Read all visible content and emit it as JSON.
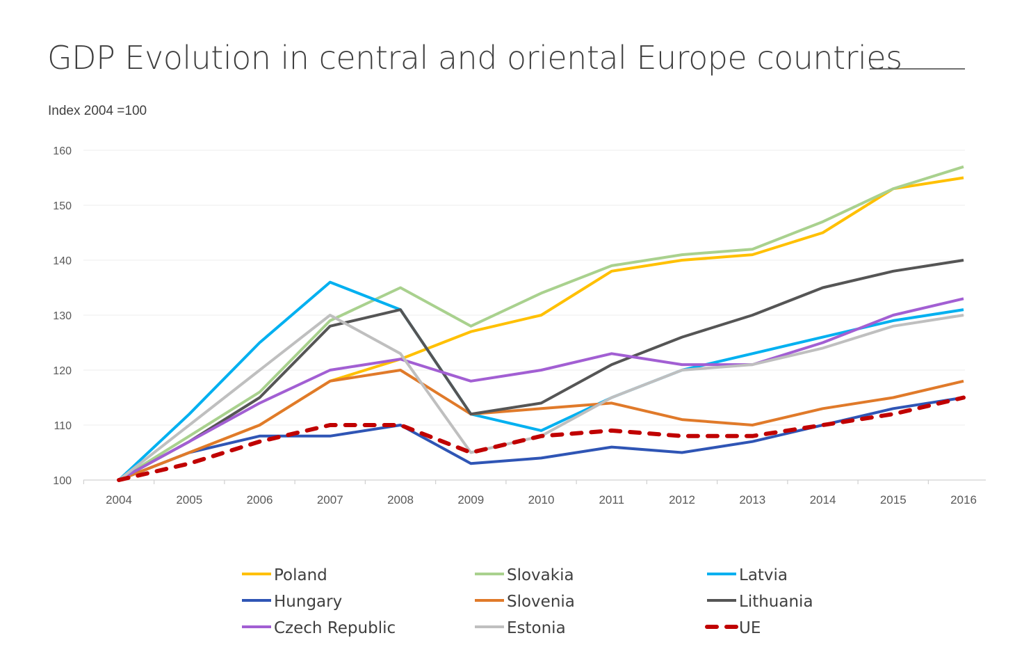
{
  "chart_data": {
    "type": "line",
    "title": "GDP Evolution in central and oriental Europe countries",
    "subtitle": "Index 2004 =100",
    "xlabel": "",
    "ylabel": "",
    "ylim": [
      100,
      160
    ],
    "yticks": [
      100,
      110,
      120,
      130,
      140,
      150,
      160
    ],
    "grid": true,
    "legend_position": "bottom",
    "categories": [
      "2004",
      "2005",
      "2006",
      "2007",
      "2008",
      "2009",
      "2010",
      "2011",
      "2012",
      "2013",
      "2014",
      "2015",
      "2016"
    ],
    "series": [
      {
        "name": "Poland",
        "color": "#FFC000",
        "dashed": false,
        "values": [
          100,
          105,
          110,
          118,
          122,
          127,
          130,
          138,
          140,
          141,
          145,
          153,
          155
        ]
      },
      {
        "name": "Slovakia",
        "color": "#A9D18E",
        "dashed": false,
        "values": [
          100,
          108,
          116,
          129,
          135,
          128,
          134,
          139,
          141,
          142,
          147,
          153,
          157
        ]
      },
      {
        "name": "Latvia",
        "color": "#00B0F0",
        "dashed": false,
        "values": [
          100,
          112,
          125,
          136,
          131,
          112,
          109,
          115,
          120,
          123,
          126,
          129,
          131
        ]
      },
      {
        "name": "Hungary",
        "color": "#2F55B5",
        "dashed": false,
        "values": [
          100,
          105,
          108,
          108,
          110,
          103,
          104,
          106,
          105,
          107,
          110,
          113,
          115
        ]
      },
      {
        "name": "Slovenia",
        "color": "#E07A2A",
        "dashed": false,
        "values": [
          100,
          105,
          110,
          118,
          120,
          112,
          113,
          114,
          111,
          110,
          113,
          115,
          118
        ]
      },
      {
        "name": "Lithuania",
        "color": "#555555",
        "dashed": false,
        "values": [
          100,
          107,
          115,
          128,
          131,
          112,
          114,
          121,
          126,
          130,
          135,
          138,
          140
        ]
      },
      {
        "name": "Czech Republic",
        "color": "#A25FD3",
        "dashed": false,
        "values": [
          100,
          107,
          114,
          120,
          122,
          118,
          120,
          123,
          121,
          121,
          125,
          130,
          133
        ]
      },
      {
        "name": "Estonia",
        "color": "#BFBFBF",
        "dashed": false,
        "values": [
          100,
          110,
          120,
          130,
          123,
          105,
          108,
          115,
          120,
          121,
          124,
          128,
          130
        ]
      },
      {
        "name": "UE",
        "color": "#C00000",
        "dashed": true,
        "values": [
          100,
          103,
          107,
          110,
          110,
          105,
          108,
          109,
          108,
          108,
          110,
          112,
          115
        ]
      }
    ]
  }
}
